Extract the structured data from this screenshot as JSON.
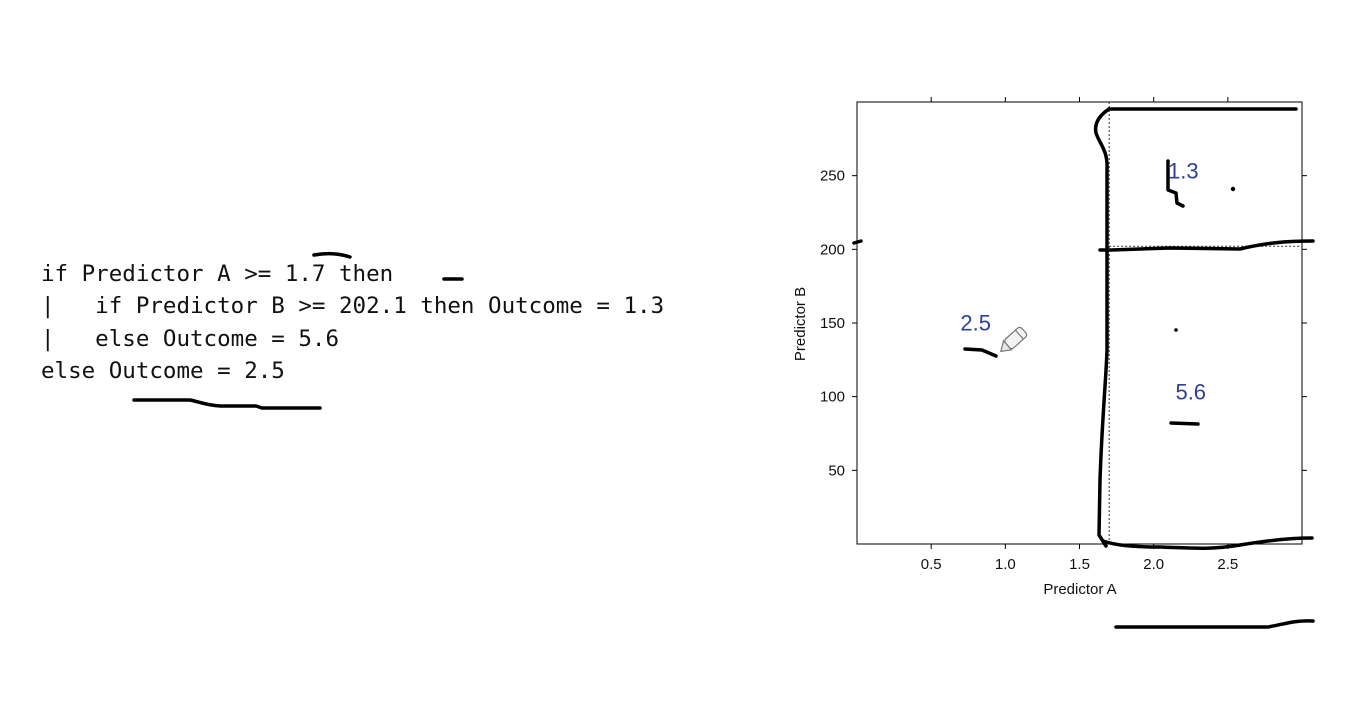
{
  "code": {
    "lines": [
      "if Predictor A >= 1.7 then",
      "|   if Predictor B >= 202.1 then Outcome = 1.3",
      "|   else Outcome = 5.6",
      "else Outcome = 2.5"
    ]
  },
  "chart_data": {
    "type": "partition",
    "xlabel": "Predictor A",
    "ylabel": "Predictor B",
    "xlim": [
      0,
      3.0
    ],
    "ylim": [
      0,
      300
    ],
    "xticks": [
      0.5,
      1.0,
      1.5,
      2.0,
      2.5
    ],
    "xtick_labels": [
      "0.5",
      "1.0",
      "1.5",
      "2.0",
      "2.5"
    ],
    "yticks": [
      50,
      100,
      150,
      200,
      250
    ],
    "ytick_labels": [
      "50",
      "100",
      "150",
      "200",
      "250"
    ],
    "splits": [
      {
        "var": "Predictor A",
        "value": 1.7
      },
      {
        "var": "Predictor B",
        "value": 202.1,
        "when": "Predictor A >= 1.7"
      }
    ],
    "regions": [
      {
        "label": "2.5",
        "x": 0.8,
        "y": 145
      },
      {
        "label": "1.3",
        "x": 2.2,
        "y": 248
      },
      {
        "label": "5.6",
        "x": 2.25,
        "y": 98
      }
    ],
    "region_label_color": "#2e3f96",
    "ink_color": "#000000",
    "grid": false
  }
}
